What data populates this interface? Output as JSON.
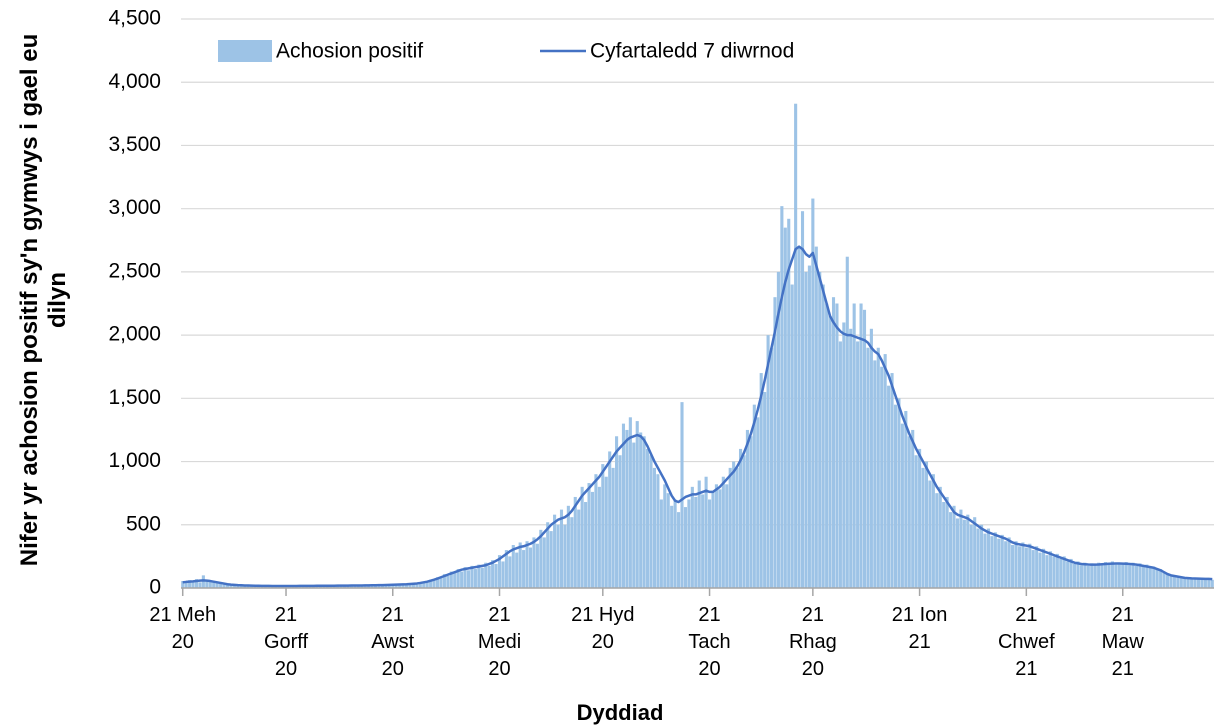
{
  "chart_data": {
    "type": "bar",
    "x_label": "Dyddiad",
    "y_label": "Nifer yr achosion positif sy'n gymwys i gael eu dilyn",
    "legend": "top",
    "grid": true,
    "ylim": [
      0,
      4500
    ],
    "yticks": [
      0,
      500,
      {
        "value": 1000,
        "label": "1,000"
      },
      {
        "value": 1500,
        "label": "1,500"
      },
      {
        "value": 2000,
        "label": "2,000"
      },
      {
        "value": 2500,
        "label": "2,500"
      },
      {
        "value": 3000,
        "label": "3,000"
      },
      {
        "value": 3500,
        "label": "3,500"
      },
      {
        "value": 4000,
        "label": "4,000"
      },
      {
        "value": 4500,
        "label": "4,500"
      }
    ],
    "categories": [
      "21 Meh 20",
      null,
      null,
      null,
      null,
      null,
      null,
      null,
      null,
      null,
      null,
      null,
      null,
      null,
      null,
      null,
      null,
      null,
      null,
      null,
      null,
      null,
      null,
      null,
      null,
      null,
      null,
      null,
      null,
      null,
      "21 Gorff 20",
      null,
      null,
      null,
      null,
      null,
      null,
      null,
      null,
      null,
      null,
      null,
      null,
      null,
      null,
      null,
      null,
      null,
      null,
      null,
      null,
      null,
      null,
      null,
      null,
      null,
      null,
      null,
      null,
      null,
      null,
      "21 Awst 20",
      null,
      null,
      null,
      null,
      null,
      null,
      null,
      null,
      null,
      null,
      null,
      null,
      null,
      null,
      null,
      null,
      null,
      null,
      null,
      null,
      null,
      null,
      null,
      null,
      null,
      null,
      null,
      null,
      null,
      null,
      "21 Medi 20",
      null,
      null,
      null,
      null,
      null,
      null,
      null,
      null,
      null,
      null,
      null,
      null,
      null,
      null,
      null,
      null,
      null,
      null,
      null,
      null,
      null,
      null,
      null,
      null,
      null,
      null,
      null,
      null,
      null,
      "21 Hyd 20",
      null,
      null,
      null,
      null,
      null,
      null,
      null,
      null,
      null,
      null,
      null,
      null,
      null,
      null,
      null,
      null,
      null,
      null,
      null,
      null,
      null,
      null,
      null,
      null,
      null,
      null,
      null,
      null,
      null,
      null,
      "21 Tach 20",
      null,
      null,
      null,
      null,
      null,
      null,
      null,
      null,
      null,
      null,
      null,
      null,
      null,
      null,
      null,
      null,
      null,
      null,
      null,
      null,
      null,
      null,
      null,
      null,
      null,
      null,
      null,
      null,
      null,
      "21 Rhag 20",
      null,
      null,
      null,
      null,
      null,
      null,
      null,
      null,
      null,
      null,
      null,
      null,
      null,
      null,
      null,
      null,
      null,
      null,
      null,
      null,
      null,
      null,
      null,
      null,
      null,
      null,
      null,
      null,
      null,
      null,
      "21 Ion 21",
      null,
      null,
      null,
      null,
      null,
      null,
      null,
      null,
      null,
      null,
      null,
      null,
      null,
      null,
      null,
      null,
      null,
      null,
      null,
      null,
      null,
      null,
      null,
      null,
      null,
      null,
      null,
      null,
      null,
      null,
      "21 Chwef 21",
      null,
      null,
      null,
      null,
      null,
      null,
      null,
      null,
      null,
      null,
      null,
      null,
      null,
      null,
      null,
      null,
      null,
      null,
      null,
      null,
      null,
      null,
      null,
      null,
      null,
      null,
      null,
      "21 Maw 21",
      null,
      null,
      null,
      null,
      null,
      null,
      null,
      null,
      null,
      null,
      null,
      null,
      null,
      null,
      null,
      null,
      null,
      null,
      null,
      null,
      null,
      null,
      null,
      null,
      null,
      null
    ],
    "series": [
      {
        "name": "Achosion positif",
        "type": "bar",
        "color": "#9dc3e6",
        "values": [
          55,
          40,
          62,
          50,
          70,
          45,
          100,
          65,
          50,
          55,
          50,
          35,
          40,
          28,
          30,
          22,
          25,
          20,
          24,
          18,
          22,
          15,
          20,
          16,
          19,
          14,
          18,
          15,
          17,
          14,
          18,
          13,
          19,
          15,
          18,
          16,
          20,
          14,
          18,
          17,
          20,
          16,
          19,
          17,
          21,
          15,
          22,
          18,
          20,
          19,
          22,
          18,
          21,
          20,
          24,
          19,
          25,
          21,
          26,
          22,
          28,
          22,
          30,
          25,
          32,
          28,
          36,
          30,
          40,
          38,
          50,
          45,
          65,
          60,
          85,
          80,
          110,
          95,
          130,
          120,
          150,
          130,
          165,
          140,
          175,
          150,
          185,
          160,
          200,
          175,
          220,
          190,
          260,
          210,
          300,
          250,
          340,
          280,
          360,
          300,
          370,
          320,
          400,
          350,
          460,
          400,
          520,
          450,
          580,
          500,
          620,
          500,
          650,
          560,
          720,
          620,
          800,
          680,
          830,
          760,
          900,
          800,
          980,
          880,
          1080,
          950,
          1200,
          1050,
          1300,
          1250,
          1350,
          1150,
          1320,
          1230,
          1200,
          1100,
          1050,
          950,
          900,
          700,
          820,
          750,
          650,
          700,
          600,
          1470,
          640,
          700,
          800,
          720,
          850,
          740,
          880,
          700,
          760,
          820,
          780,
          880,
          820,
          950,
          1000,
          950,
          1100,
          1050,
          1250,
          1200,
          1450,
          1350,
          1700,
          1550,
          2000,
          1900,
          2300,
          2500,
          3020,
          2850,
          2920,
          2400,
          3830,
          2700,
          2980,
          2500,
          2550,
          3080,
          2700,
          2500,
          2400,
          2250,
          2150,
          2300,
          2250,
          1950,
          2100,
          2620,
          2050,
          2250,
          1950,
          2250,
          2200,
          1900,
          2050,
          1800,
          1900,
          1750,
          1850,
          1600,
          1700,
          1450,
          1500,
          1300,
          1400,
          1200,
          1250,
          1050,
          1100,
          950,
          1000,
          850,
          900,
          750,
          800,
          680,
          720,
          600,
          650,
          550,
          620,
          540,
          580,
          500,
          560,
          470,
          500,
          430,
          470,
          410,
          440,
          390,
          420,
          370,
          400,
          340,
          370,
          330,
          360,
          320,
          350,
          300,
          330,
          280,
          310,
          260,
          290,
          250,
          270,
          230,
          250,
          210,
          230,
          190,
          210,
          180,
          200,
          175,
          195,
          180,
          200,
          180,
          205,
          185,
          210,
          185,
          200,
          190,
          205,
          180,
          200,
          175,
          195,
          170,
          185,
          160,
          170,
          145,
          150,
          120,
          115,
          95,
          100,
          85,
          90,
          75,
          82,
          72,
          80,
          70,
          76,
          68,
          75,
          65
        ]
      },
      {
        "name": "Cyfartaledd 7 diwrnod",
        "type": "line",
        "color": "#4472c4",
        "values": [
          45,
          48,
          50,
          52,
          55,
          58,
          60,
          58,
          55,
          50,
          45,
          40,
          35,
          30,
          27,
          25,
          23,
          22,
          20,
          20,
          19,
          18,
          18,
          17,
          17,
          17,
          16,
          16,
          16,
          16,
          16,
          16,
          16,
          16,
          17,
          17,
          17,
          17,
          17,
          18,
          18,
          18,
          18,
          18,
          18,
          19,
          19,
          19,
          19,
          20,
          20,
          20,
          20,
          21,
          21,
          22,
          22,
          23,
          23,
          24,
          25,
          26,
          27,
          28,
          29,
          30,
          32,
          34,
          36,
          40,
          45,
          50,
          58,
          66,
          75,
          85,
          95,
          105,
          115,
          125,
          135,
          145,
          150,
          155,
          160,
          165,
          170,
          175,
          180,
          190,
          200,
          215,
          230,
          250,
          270,
          290,
          305,
          315,
          325,
          330,
          340,
          350,
          365,
          385,
          410,
          440,
          470,
          500,
          520,
          540,
          550,
          560,
          580,
          610,
          650,
          690,
          730,
          760,
          790,
          820,
          850,
          880,
          920,
          960,
          1000,
          1040,
          1080,
          1110,
          1140,
          1170,
          1190,
          1200,
          1210,
          1200,
          1170,
          1120,
          1060,
          1000,
          950,
          900,
          850,
          790,
          730,
          690,
          680,
          700,
          720,
          730,
          740,
          740,
          750,
          760,
          770,
          760,
          760,
          780,
          800,
          830,
          860,
          890,
          920,
          960,
          1010,
          1070,
          1140,
          1220,
          1310,
          1410,
          1520,
          1640,
          1770,
          1900,
          2030,
          2170,
          2300,
          2420,
          2520,
          2600,
          2680,
          2700,
          2680,
          2640,
          2620,
          2650,
          2550,
          2450,
          2350,
          2250,
          2150,
          2100,
          2060,
          2030,
          2010,
          2000,
          2000,
          1990,
          1980,
          1970,
          1960,
          1940,
          1900,
          1870,
          1850,
          1800,
          1740,
          1680,
          1600,
          1520,
          1440,
          1360,
          1290,
          1220,
          1160,
          1100,
          1050,
          1000,
          950,
          900,
          850,
          800,
          760,
          720,
          680,
          640,
          600,
          580,
          570,
          560,
          550,
          530,
          510,
          490,
          470,
          455,
          440,
          430,
          420,
          410,
          400,
          390,
          375,
          360,
          350,
          345,
          340,
          335,
          330,
          320,
          310,
          300,
          290,
          280,
          270,
          260,
          250,
          240,
          230,
          220,
          210,
          200,
          195,
          190,
          188,
          186,
          185,
          185,
          186,
          188,
          190,
          192,
          193,
          194,
          194,
          193,
          192,
          190,
          188,
          185,
          180,
          175,
          170,
          165,
          160,
          150,
          140,
          125,
          110,
          100,
          95,
          90,
          85,
          80,
          78,
          76,
          75,
          74,
          73,
          72,
          72,
          70
        ]
      }
    ]
  }
}
